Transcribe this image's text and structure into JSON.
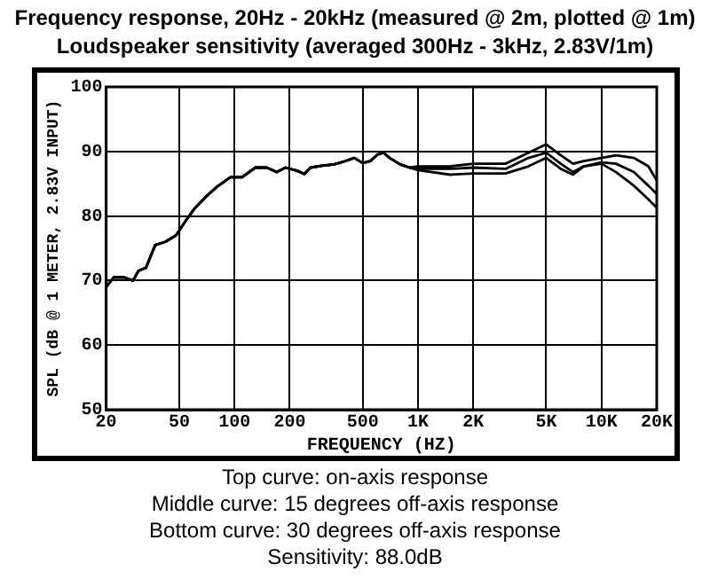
{
  "chart_data": {
    "type": "line",
    "title": "Frequency response, 20Hz - 20kHz (measured @ 2m, plotted @ 1m)",
    "subtitle": "Loudspeaker sensitivity (averaged 300Hz - 3kHz, 2.83V/1m)",
    "xlabel": "FREQUENCY (HZ)",
    "ylabel": "SPL (dB @ 1 METER, 2.83V INPUT)",
    "annotations": [
      "Top curve: on-axis response",
      "Middle curve: 15 degrees off-axis response",
      "Bottom curve: 30 degrees off-axis response",
      "Sensitivity: 88.0dB"
    ],
    "log": "x",
    "grid": true,
    "legend": false,
    "marker": "none",
    "line_style": "solid",
    "xlim": [
      20,
      20000
    ],
    "xticks": [
      20,
      50,
      100,
      200,
      500,
      {
        "value": 1000,
        "label": "1K"
      },
      {
        "value": 2000,
        "label": "2K"
      },
      {
        "value": 5000,
        "label": "5K"
      },
      {
        "value": 10000,
        "label": "10K"
      },
      {
        "value": 20000,
        "label": "20K"
      }
    ],
    "ylim": [
      50,
      100
    ],
    "yticks": [
      50,
      60,
      70,
      80,
      90,
      100
    ],
    "series": [
      {
        "color": "#000000",
        "x": [
          20,
          22,
          25,
          28,
          30,
          33,
          37,
          42,
          48,
          55,
          60,
          70,
          80,
          95,
          110,
          130,
          150,
          170,
          190,
          220,
          240,
          260,
          300,
          350,
          400,
          450,
          500,
          550,
          600,
          650,
          700,
          800,
          900,
          1000,
          1500,
          2000,
          3000,
          4000,
          5000,
          6000,
          7000,
          8000,
          10000,
          12000,
          15000,
          18000,
          20000
        ],
        "values": [
          69,
          70.5,
          70.5,
          70,
          71.5,
          72,
          75.5,
          76,
          77,
          79.5,
          81,
          83,
          84.5,
          86,
          86,
          87.5,
          87.5,
          86.8,
          87.5,
          87,
          86.5,
          87.5,
          87.8,
          88,
          88.5,
          89,
          88.2,
          88.5,
          89.5,
          89.8,
          89,
          88,
          87.5,
          87.7,
          87.7,
          88.1,
          88.1,
          89.8,
          91.1,
          89.4,
          88.1,
          88.5,
          89,
          89.4,
          89,
          87.7,
          85.5
        ]
      },
      {
        "color": "#000000",
        "x": [
          20,
          22,
          25,
          28,
          30,
          33,
          37,
          42,
          48,
          55,
          60,
          70,
          80,
          95,
          110,
          130,
          150,
          170,
          190,
          220,
          240,
          260,
          300,
          350,
          400,
          450,
          500,
          550,
          600,
          650,
          700,
          800,
          900,
          1000,
          1500,
          2000,
          3000,
          4000,
          5000,
          6000,
          7000,
          8000,
          10000,
          12000,
          15000,
          18000,
          20000
        ],
        "values": [
          69,
          70.5,
          70.5,
          70,
          71.5,
          72,
          75.5,
          76,
          77,
          79.5,
          81,
          83,
          84.5,
          86,
          86,
          87.5,
          87.5,
          86.8,
          87.5,
          87,
          86.5,
          87.5,
          87.8,
          88,
          88.5,
          89,
          88.2,
          88.5,
          89.5,
          89.8,
          89,
          88,
          87.5,
          87.3,
          87.3,
          87.5,
          87.3,
          89,
          89.8,
          88.1,
          86.8,
          87.7,
          88.3,
          88.1,
          86.8,
          84.7,
          83.4
        ]
      },
      {
        "color": "#000000",
        "x": [
          20,
          22,
          25,
          28,
          30,
          33,
          37,
          42,
          48,
          55,
          60,
          70,
          80,
          95,
          110,
          130,
          150,
          170,
          190,
          220,
          240,
          260,
          300,
          350,
          400,
          450,
          500,
          550,
          600,
          650,
          700,
          800,
          900,
          1000,
          1500,
          2000,
          3000,
          4000,
          5000,
          6000,
          7000,
          8000,
          10000,
          12000,
          15000,
          18000,
          20000
        ],
        "values": [
          69,
          70.5,
          70.5,
          70,
          71.5,
          72,
          75.5,
          76,
          77,
          79.5,
          81,
          83,
          84.5,
          86,
          86,
          87.5,
          87.5,
          86.8,
          87.5,
          87,
          86.5,
          87.5,
          87.8,
          88,
          88.5,
          89,
          88.2,
          88.5,
          89.5,
          89.8,
          89,
          88,
          87.5,
          87.1,
          86.4,
          86.6,
          86.6,
          87.7,
          89,
          87.3,
          86.4,
          87.7,
          88.1,
          86.8,
          84.7,
          82.6,
          81.3
        ]
      }
    ]
  }
}
